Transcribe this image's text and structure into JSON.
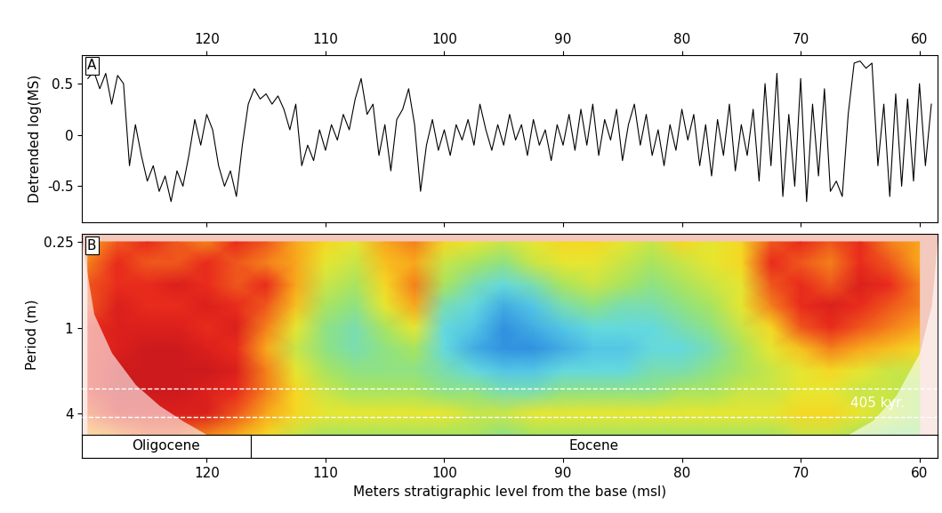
{
  "chart_data": [
    {
      "type": "line",
      "label": "A",
      "ylabel": "Detrended log(MS)",
      "color": "#000000",
      "x": [
        130,
        129.5,
        129,
        128.5,
        128,
        127.5,
        127,
        126.5,
        126,
        125.5,
        125,
        124.5,
        124,
        123.5,
        123,
        122.5,
        122,
        121.5,
        121,
        120.5,
        120,
        119.5,
        119,
        118.5,
        118,
        117.5,
        117,
        116.5,
        116,
        115.5,
        115,
        114.5,
        114,
        113.5,
        113,
        112.5,
        112,
        111.5,
        111,
        110.5,
        110,
        109.5,
        109,
        108.5,
        108,
        107.5,
        107,
        106.5,
        106,
        105.5,
        105,
        104.5,
        104,
        103.5,
        103,
        102.5,
        102,
        101.5,
        101,
        100.5,
        100,
        99.5,
        99,
        98.5,
        98,
        97.5,
        97,
        96.5,
        96,
        95.5,
        95,
        94.5,
        94,
        93.5,
        93,
        92.5,
        92,
        91.5,
        91,
        90.5,
        90,
        89.5,
        89,
        88.5,
        88,
        87.5,
        87,
        86.5,
        86,
        85.5,
        85,
        84.5,
        84,
        83.5,
        83,
        82.5,
        82,
        81.5,
        81,
        80.5,
        80,
        79.5,
        79,
        78.5,
        78,
        77.5,
        77,
        76.5,
        76,
        75.5,
        75,
        74.5,
        74,
        73.5,
        73,
        72.5,
        72,
        71.5,
        71,
        70.5,
        70,
        69.5,
        69,
        68.5,
        68,
        67.5,
        67,
        66.5,
        66,
        65.5,
        65,
        64.5,
        64,
        63.5,
        63,
        62.5,
        62,
        61.5,
        61,
        60.5,
        60,
        59.5,
        59
      ],
      "values": [
        0.55,
        0.62,
        0.45,
        0.6,
        0.3,
        0.58,
        0.5,
        -0.3,
        0.1,
        -0.2,
        -0.45,
        -0.3,
        -0.55,
        -0.4,
        -0.65,
        -0.35,
        -0.5,
        -0.2,
        0.15,
        -0.1,
        0.2,
        0.05,
        -0.3,
        -0.5,
        -0.35,
        -0.6,
        -0.1,
        0.3,
        0.45,
        0.35,
        0.4,
        0.3,
        0.38,
        0.25,
        0.05,
        0.3,
        -0.3,
        -0.1,
        -0.25,
        0.05,
        -0.15,
        0.1,
        -0.05,
        0.2,
        0.05,
        0.35,
        0.55,
        0.2,
        0.3,
        -0.2,
        0.1,
        -0.35,
        0.15,
        0.25,
        0.45,
        0.1,
        -0.55,
        -0.1,
        0.15,
        -0.15,
        0.05,
        -0.2,
        0.1,
        -0.05,
        0.15,
        -0.1,
        0.3,
        0.05,
        -0.15,
        0.1,
        -0.1,
        0.2,
        -0.05,
        0.1,
        -0.2,
        0.15,
        -0.1,
        0.05,
        -0.25,
        0.1,
        -0.1,
        0.2,
        -0.15,
        0.25,
        -0.1,
        0.3,
        -0.2,
        0.15,
        -0.05,
        0.25,
        -0.25,
        0.1,
        0.3,
        -0.1,
        0.2,
        -0.2,
        0.05,
        -0.3,
        0.1,
        -0.15,
        0.25,
        -0.05,
        0.2,
        -0.3,
        0.1,
        -0.4,
        0.15,
        -0.2,
        0.3,
        -0.35,
        0.1,
        -0.2,
        0.25,
        -0.45,
        0.5,
        -0.3,
        0.6,
        -0.6,
        0.2,
        -0.5,
        0.55,
        -0.65,
        0.3,
        -0.4,
        0.45,
        -0.55,
        -0.45,
        -0.6,
        0.2,
        0.7,
        0.72,
        0.65,
        0.7,
        -0.3,
        0.3,
        -0.6,
        0.4,
        -0.5,
        0.35,
        -0.45,
        0.5,
        -0.3,
        0.3
      ],
      "xlim": [
        130.5,
        58.5
      ],
      "xticks": [
        120,
        110,
        100,
        90,
        80,
        70,
        60
      ],
      "ylim": [
        -0.85,
        0.78
      ],
      "yticks": [
        -0.5,
        0,
        0.5
      ]
    },
    {
      "type": "heatmap",
      "label": "B",
      "ylabel": "Period (m)",
      "xlabel": "Meters stratigraphic level from the base (msl)",
      "log": "y",
      "x": [
        130,
        127.5,
        125,
        122.5,
        120,
        117.5,
        115,
        112.5,
        110,
        107.5,
        105,
        102.5,
        100,
        97.5,
        95,
        92.5,
        90,
        87.5,
        85,
        82.5,
        80,
        77.5,
        75,
        72.5,
        70,
        67.5,
        65,
        62.5,
        60
      ],
      "y": [
        0.25,
        0.35,
        0.5,
        0.7,
        1,
        1.4,
        2,
        2.8,
        4,
        5.6
      ],
      "cells": [
        [
          0.7,
          0.8,
          0.85,
          0.8,
          0.75,
          0.85,
          0.8,
          0.7,
          0.6,
          0.55,
          0.7,
          0.75,
          0.6,
          0.55,
          0.5,
          0.55,
          0.6,
          0.6,
          0.55,
          0.5,
          0.6,
          0.55,
          0.6,
          0.8,
          0.85,
          0.8,
          0.85,
          0.75,
          0.7
        ],
        [
          0.75,
          0.85,
          0.8,
          0.8,
          0.85,
          0.8,
          0.75,
          0.7,
          0.55,
          0.5,
          0.65,
          0.7,
          0.5,
          0.45,
          0.4,
          0.5,
          0.55,
          0.55,
          0.5,
          0.45,
          0.5,
          0.55,
          0.6,
          0.85,
          0.8,
          0.75,
          0.85,
          0.8,
          0.7
        ],
        [
          0.8,
          0.85,
          0.85,
          0.9,
          0.85,
          0.8,
          0.85,
          0.7,
          0.5,
          0.45,
          0.6,
          0.75,
          0.45,
          0.35,
          0.3,
          0.35,
          0.45,
          0.5,
          0.45,
          0.4,
          0.45,
          0.5,
          0.55,
          0.8,
          0.85,
          0.8,
          0.9,
          0.85,
          0.75
        ],
        [
          0.8,
          0.9,
          0.85,
          0.85,
          0.9,
          0.85,
          0.8,
          0.65,
          0.45,
          0.4,
          0.55,
          0.7,
          0.35,
          0.3,
          0.2,
          0.25,
          0.35,
          0.4,
          0.35,
          0.35,
          0.4,
          0.45,
          0.55,
          0.75,
          0.85,
          0.9,
          0.85,
          0.8,
          0.75
        ],
        [
          0.85,
          0.9,
          0.9,
          0.9,
          0.85,
          0.9,
          0.75,
          0.55,
          0.4,
          0.35,
          0.45,
          0.55,
          0.3,
          0.25,
          0.15,
          0.2,
          0.25,
          0.3,
          0.3,
          0.3,
          0.35,
          0.4,
          0.5,
          0.6,
          0.8,
          0.85,
          0.8,
          0.75,
          0.7
        ],
        [
          0.85,
          0.9,
          0.95,
          0.95,
          0.9,
          0.85,
          0.7,
          0.5,
          0.4,
          0.35,
          0.4,
          0.45,
          0.3,
          0.2,
          0.15,
          0.15,
          0.2,
          0.25,
          0.25,
          0.3,
          0.3,
          0.35,
          0.45,
          0.55,
          0.65,
          0.75,
          0.7,
          0.65,
          0.6
        ],
        [
          0.85,
          0.95,
          0.95,
          0.95,
          0.95,
          0.9,
          0.75,
          0.55,
          0.45,
          0.4,
          0.4,
          0.4,
          0.35,
          0.3,
          0.25,
          0.25,
          0.3,
          0.3,
          0.3,
          0.35,
          0.35,
          0.4,
          0.45,
          0.5,
          0.55,
          0.6,
          0.55,
          0.5,
          0.5
        ],
        [
          0.85,
          0.95,
          0.95,
          0.95,
          0.9,
          0.85,
          0.75,
          0.6,
          0.5,
          0.45,
          0.45,
          0.45,
          0.4,
          0.4,
          0.35,
          0.35,
          0.4,
          0.4,
          0.4,
          0.4,
          0.45,
          0.45,
          0.5,
          0.5,
          0.55,
          0.55,
          0.5,
          0.5,
          0.45
        ],
        [
          0.8,
          0.9,
          0.9,
          0.9,
          0.9,
          0.8,
          0.7,
          0.6,
          0.55,
          0.55,
          0.55,
          0.55,
          0.55,
          0.5,
          0.5,
          0.55,
          0.55,
          0.55,
          0.55,
          0.55,
          0.55,
          0.55,
          0.55,
          0.55,
          0.6,
          0.6,
          0.55,
          0.5,
          0.45
        ],
        [
          0.7,
          0.75,
          0.8,
          0.8,
          0.75,
          0.7,
          0.6,
          0.5,
          0.45,
          0.45,
          0.45,
          0.45,
          0.45,
          0.45,
          0.4,
          0.45,
          0.45,
          0.45,
          0.45,
          0.45,
          0.45,
          0.45,
          0.45,
          0.45,
          0.5,
          0.5,
          0.45,
          0.4,
          0.4
        ]
      ],
      "cell_range": [
        0,
        1
      ],
      "cone_of_influence": {
        "x": [
          130.5,
          129.5,
          128,
          126,
          124,
          122,
          120,
          66,
          64,
          62,
          60,
          59,
          58.5
        ],
        "period": [
          0.25,
          0.8,
          1.5,
          2.5,
          3.5,
          4.5,
          5.6,
          5.6,
          4.5,
          3,
          1.5,
          0.7,
          0.25
        ]
      },
      "band": {
        "label": "405 kyr.",
        "periods": [
          2.67,
          4.24
        ]
      },
      "epochs": [
        {
          "label": "Oligocene",
          "from": 130.5,
          "to": 116.3
        },
        {
          "label": "Eocene",
          "from": 116.3,
          "to": 58.5
        }
      ],
      "xlim": [
        130.5,
        58.5
      ],
      "xticks": [
        120,
        110,
        100,
        90,
        80,
        70,
        60
      ],
      "ylim": [
        5.6,
        0.22
      ],
      "yticks": [
        0.25,
        1,
        4
      ]
    }
  ]
}
